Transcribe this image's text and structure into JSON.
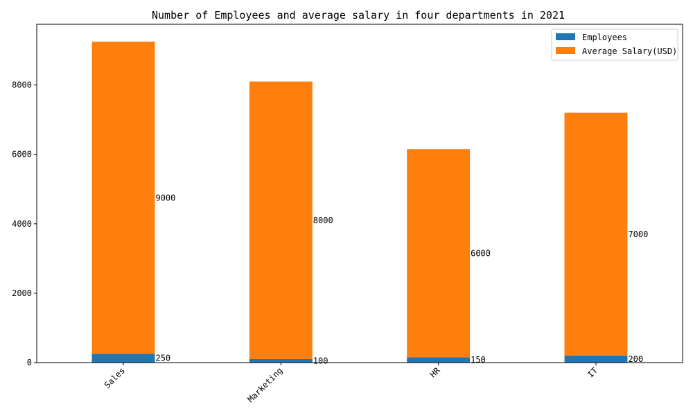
{
  "chart_data": {
    "type": "bar",
    "stacked": true,
    "title": "Number of Employees and average salary in four departments in 2021",
    "xlabel": "",
    "ylabel": "",
    "categories": [
      "Sales",
      "Marketing",
      "HR",
      "IT"
    ],
    "series": [
      {
        "name": "Employees",
        "values": [
          250,
          100,
          150,
          200
        ],
        "color": "#1f77b4"
      },
      {
        "name": "Average Salary(USD)",
        "values": [
          9000,
          8000,
          6000,
          7000
        ],
        "color": "#ff7f0e"
      }
    ],
    "ylim": [
      0,
      9750
    ],
    "yticks": [
      0,
      2000,
      4000,
      6000,
      8000
    ],
    "grid": false,
    "legend_position": "top-right"
  }
}
